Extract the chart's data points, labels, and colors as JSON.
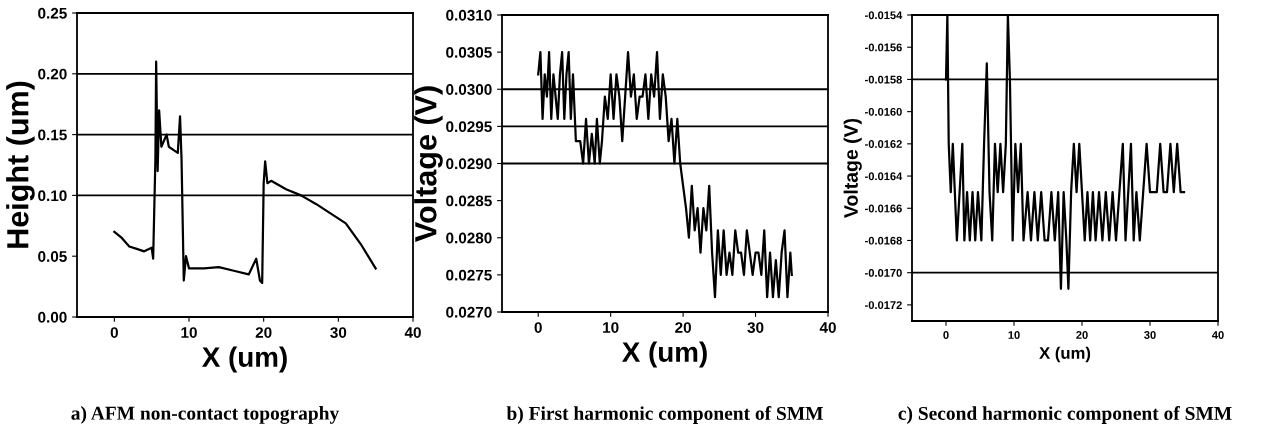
{
  "chart_data": [
    {
      "type": "line",
      "xlabel": "X (um)",
      "ylabel": "Height (um)",
      "xlim": [
        -5,
        40
      ],
      "xticks": [
        0,
        10,
        20,
        30,
        40
      ],
      "ylim": [
        0,
        0.25
      ],
      "yticks": [
        {
          "value": 0,
          "label": "0.00"
        },
        {
          "value": 0.05,
          "label": "0.05"
        },
        {
          "value": 0.1,
          "label": "0.10"
        },
        {
          "value": 0.15,
          "label": "0.15"
        },
        {
          "value": 0.2,
          "label": "0.20"
        },
        {
          "value": 0.25,
          "label": "0.25"
        }
      ],
      "ref_lines": [
        {
          "axis": "y",
          "value": 0.1,
          "color": "#000000"
        },
        {
          "axis": "y",
          "value": 0.15,
          "color": "#000000"
        },
        {
          "axis": "y",
          "value": 0.2,
          "color": "#000000"
        }
      ],
      "series": [
        {
          "color": "#000000",
          "x": [
            0,
            1,
            2,
            3,
            4,
            5,
            5.2,
            5.5,
            5.6,
            5.8,
            6,
            6.3,
            7,
            7.3,
            8,
            8.5,
            8.8,
            9,
            9.3,
            9.6,
            10,
            12,
            14,
            16,
            18,
            19,
            19.5,
            19.8,
            20,
            20.2,
            20.5,
            21,
            23,
            25,
            27,
            29,
            31,
            33,
            35
          ],
          "values": [
            0.07,
            0.065,
            0.058,
            0.056,
            0.054,
            0.057,
            0.048,
            0.13,
            0.21,
            0.12,
            0.17,
            0.14,
            0.15,
            0.14,
            0.137,
            0.135,
            0.165,
            0.13,
            0.03,
            0.05,
            0.04,
            0.04,
            0.041,
            0.038,
            0.035,
            0.048,
            0.03,
            0.028,
            0.11,
            0.128,
            0.11,
            0.112,
            0.105,
            0.1,
            0.093,
            0.085,
            0.077,
            0.06,
            0.04
          ]
        }
      ],
      "annotations": [
        "a) AFM non-contact topography"
      ]
    },
    {
      "type": "line",
      "xlabel": "X (um)",
      "ylabel": "Voltage (V)",
      "xlim": [
        -5,
        40
      ],
      "xticks": [
        0,
        10,
        20,
        30,
        40
      ],
      "ylim": [
        0.027,
        0.031
      ],
      "yticks": [
        {
          "value": 0.027,
          "label": "0.0270"
        },
        {
          "value": 0.0275,
          "label": "0.0275"
        },
        {
          "value": 0.028,
          "label": "0.0280"
        },
        {
          "value": 0.0285,
          "label": "0.0285"
        },
        {
          "value": 0.029,
          "label": "0.0290"
        },
        {
          "value": 0.0295,
          "label": "0.0295"
        },
        {
          "value": 0.03,
          "label": "0.0300"
        },
        {
          "value": 0.0305,
          "label": "0.0305"
        },
        {
          "value": 0.031,
          "label": "0.0310"
        }
      ],
      "ref_lines": [
        {
          "axis": "y",
          "value": 0.029,
          "color": "#000000"
        },
        {
          "axis": "y",
          "value": 0.0295,
          "color": "#000000"
        },
        {
          "axis": "y",
          "value": 0.03,
          "color": "#000000"
        }
      ],
      "series": [
        {
          "color": "#000000",
          "x": [
            0,
            0.3,
            0.6,
            0.9,
            1.2,
            1.5,
            1.8,
            2.1,
            2.4,
            2.7,
            3,
            3.3,
            3.6,
            3.9,
            4.2,
            4.5,
            4.8,
            5.2,
            5.8,
            6.2,
            6.6,
            7,
            7.4,
            7.8,
            8.1,
            8.5,
            8.8,
            9.2,
            9.6,
            10,
            10.4,
            10.8,
            11.2,
            11.6,
            12,
            12.4,
            12.8,
            13.2,
            13.6,
            14,
            14.4,
            14.8,
            15.2,
            15.6,
            16,
            16.4,
            16.8,
            17.2,
            17.6,
            18,
            18.4,
            18.8,
            19.2,
            19.6,
            20,
            20.4,
            20.8,
            21.2,
            21.6,
            22,
            22.4,
            22.8,
            23.2,
            23.6,
            24,
            24.4,
            24.8,
            25.2,
            25.6,
            26,
            26.4,
            26.8,
            27.2,
            27.6,
            28,
            28.4,
            28.8,
            29.2,
            29.6,
            30,
            30.4,
            30.8,
            31.2,
            31.6,
            32,
            32.4,
            32.8,
            33.2,
            33.6,
            34,
            34.4,
            34.8,
            35
          ],
          "values": [
            0.0302,
            0.0305,
            0.0296,
            0.0302,
            0.0299,
            0.0305,
            0.0296,
            0.0302,
            0.0299,
            0.0296,
            0.0302,
            0.0305,
            0.0296,
            0.0302,
            0.0305,
            0.0296,
            0.0302,
            0.0293,
            0.0293,
            0.029,
            0.0296,
            0.029,
            0.0294,
            0.029,
            0.0296,
            0.029,
            0.0293,
            0.0299,
            0.0296,
            0.0302,
            0.0296,
            0.0302,
            0.0299,
            0.0293,
            0.0299,
            0.0305,
            0.0299,
            0.0302,
            0.0296,
            0.0299,
            0.0299,
            0.0302,
            0.0296,
            0.0302,
            0.0299,
            0.0305,
            0.0296,
            0.0302,
            0.0299,
            0.0293,
            0.0296,
            0.029,
            0.0296,
            0.029,
            0.0287,
            0.0284,
            0.028,
            0.0287,
            0.0281,
            0.0284,
            0.0278,
            0.0284,
            0.0281,
            0.0287,
            0.0278,
            0.0272,
            0.0281,
            0.0275,
            0.0281,
            0.0275,
            0.0278,
            0.0275,
            0.0281,
            0.0278,
            0.0278,
            0.0275,
            0.0281,
            0.0278,
            0.0275,
            0.0278,
            0.0278,
            0.0275,
            0.0281,
            0.0272,
            0.0278,
            0.0272,
            0.0277,
            0.0272,
            0.0278,
            0.0281,
            0.0272,
            0.0278,
            0.0275
          ]
        }
      ],
      "annotations": [
        "b) First harmonic component of SMM"
      ]
    },
    {
      "type": "line",
      "xlabel": "X (um)",
      "ylabel": "Voltage (V)",
      "xlim": [
        -5,
        40
      ],
      "xticks": [
        0,
        10,
        20,
        30,
        40
      ],
      "ylim": [
        -0.0173,
        -0.0154
      ],
      "yticks": [
        {
          "value": -0.0172,
          "label": "-0.0172"
        },
        {
          "value": -0.017,
          "label": "-0.0170"
        },
        {
          "value": -0.0168,
          "label": "-0.0168"
        },
        {
          "value": -0.0166,
          "label": "-0.0166"
        },
        {
          "value": -0.0164,
          "label": "-0.0164"
        },
        {
          "value": -0.0162,
          "label": "-0.0162"
        },
        {
          "value": -0.016,
          "label": "-0.0160"
        },
        {
          "value": -0.0158,
          "label": "-0.0158"
        },
        {
          "value": -0.0156,
          "label": "-0.0156"
        },
        {
          "value": -0.0154,
          "label": "-0.0154"
        }
      ],
      "ref_lines": [
        {
          "axis": "y",
          "value": -0.0158,
          "color": "#000000"
        },
        {
          "axis": "y",
          "value": -0.017,
          "color": "#000000"
        }
      ],
      "series": [
        {
          "color": "#000000",
          "x": [
            0,
            0.2,
            0.4,
            0.7,
            1,
            1.3,
            1.6,
            2,
            2.4,
            2.7,
            3.1,
            3.5,
            3.9,
            4.3,
            4.7,
            5.2,
            5.6,
            6,
            6.4,
            6.8,
            7.2,
            7.6,
            8,
            8.4,
            8.8,
            9.1,
            9.4,
            9.8,
            10.2,
            10.6,
            11,
            11.4,
            12,
            12.5,
            13,
            13.5,
            14,
            14.5,
            15,
            15.5,
            16,
            16.5,
            16.9,
            17.3,
            17.7,
            18,
            18.4,
            18.8,
            19.2,
            19.6,
            20,
            20.4,
            20.8,
            21.2,
            21.6,
            22,
            22.5,
            23,
            23.5,
            24,
            24.5,
            25,
            25.5,
            26,
            26.4,
            26.8,
            27.2,
            27.6,
            28,
            28.5,
            29,
            29.5,
            30,
            31,
            31.5,
            32,
            32.5,
            33,
            33.5,
            34,
            34.5,
            35
          ],
          "values": [
            -0.0158,
            -0.0154,
            -0.0162,
            -0.0165,
            -0.0162,
            -0.0165,
            -0.0168,
            -0.0165,
            -0.0162,
            -0.0168,
            -0.0165,
            -0.0168,
            -0.0165,
            -0.0168,
            -0.0165,
            -0.0168,
            -0.0162,
            -0.0157,
            -0.0165,
            -0.0168,
            -0.0162,
            -0.0165,
            -0.0162,
            -0.0165,
            -0.0162,
            -0.0154,
            -0.0158,
            -0.0168,
            -0.0162,
            -0.0165,
            -0.0162,
            -0.0168,
            -0.0165,
            -0.0168,
            -0.0165,
            -0.0168,
            -0.0165,
            -0.0168,
            -0.0168,
            -0.0165,
            -0.0168,
            -0.0165,
            -0.0171,
            -0.0165,
            -0.0168,
            -0.0171,
            -0.0165,
            -0.0162,
            -0.0165,
            -0.0162,
            -0.0165,
            -0.0168,
            -0.0165,
            -0.0168,
            -0.0165,
            -0.0168,
            -0.0165,
            -0.0168,
            -0.0165,
            -0.0168,
            -0.0165,
            -0.0168,
            -0.0165,
            -0.0162,
            -0.0168,
            -0.0165,
            -0.0162,
            -0.0168,
            -0.0165,
            -0.0168,
            -0.0165,
            -0.0162,
            -0.0165,
            -0.0165,
            -0.0162,
            -0.0165,
            -0.0165,
            -0.0162,
            -0.0165,
            -0.0162,
            -0.0165,
            -0.0165
          ]
        }
      ],
      "annotations": [
        "c) Second harmonic component of SMM"
      ]
    }
  ]
}
